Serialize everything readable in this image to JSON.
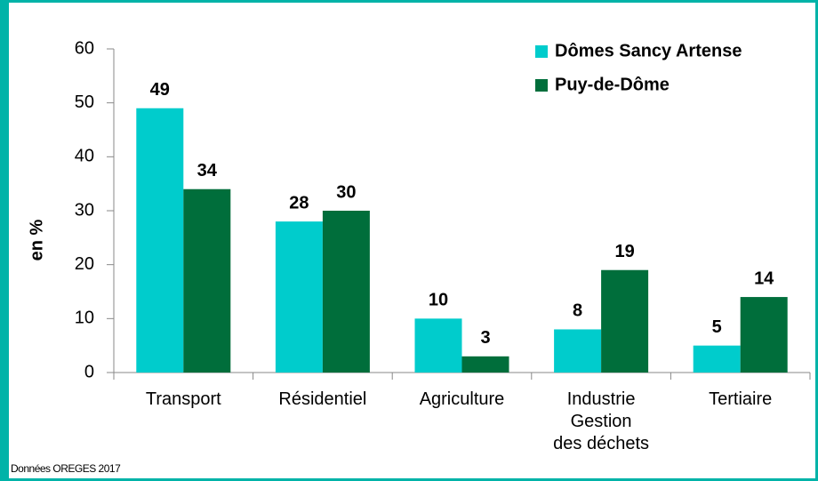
{
  "chart_data": {
    "type": "bar",
    "categories": [
      "Transport",
      "Résidentiel",
      "Agriculture",
      "Industrie\nGestion\ndes déchets",
      "Tertiaire"
    ],
    "series": [
      {
        "name": "Dômes Sancy Artense",
        "color": "#00cccc",
        "values": [
          49,
          28,
          10,
          8,
          5
        ]
      },
      {
        "name": "Puy-de-Dôme",
        "color": "#006e3b",
        "values": [
          34,
          30,
          3,
          19,
          14
        ]
      }
    ],
    "y_label": "en %",
    "ylim": [
      0,
      60
    ],
    "yticks": [
      0,
      10,
      20,
      30,
      40,
      50,
      60
    ],
    "legend": "top-right",
    "source": "Données OREGES 2017"
  }
}
